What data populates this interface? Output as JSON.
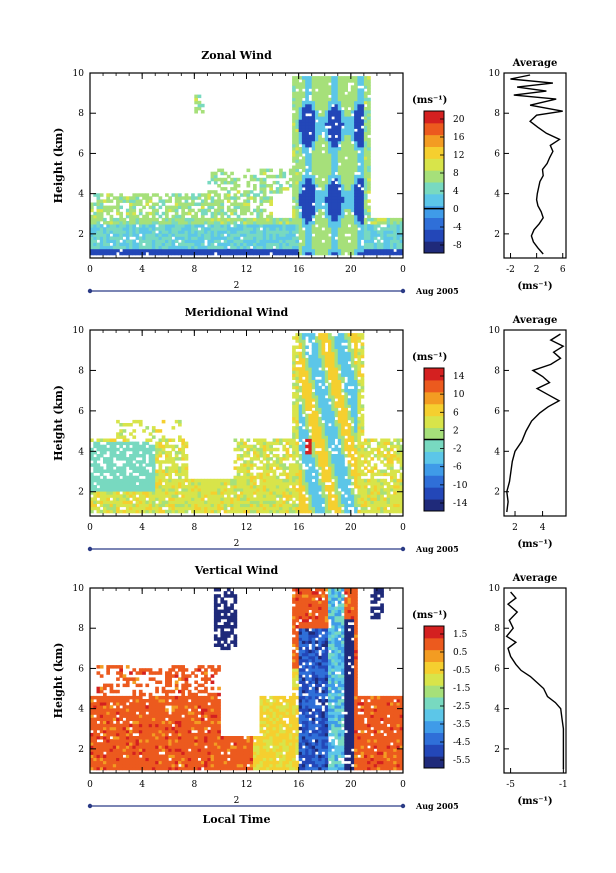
{
  "colors": {
    "colorbar": [
      "#1f2a7a",
      "#2347b8",
      "#2f6fd8",
      "#3f9be8",
      "#5cc6e8",
      "#78d9c0",
      "#a6e07a",
      "#d8e44a",
      "#f5cf2f",
      "#f39c22",
      "#ec5a1e",
      "#d42020"
    ],
    "contour": "#000000",
    "date_axis": "#2b3b86"
  },
  "date_label": "Aug 2005",
  "day_marker": "2",
  "xlabel": "Local Time",
  "unit": "(ms⁻¹)",
  "profile_title": "Average",
  "chart_data": [
    {
      "type": "heatmap",
      "title": "Zonal Wind",
      "ylabel": "Height (km)",
      "xlabel": "Local Time",
      "x_ticks": [
        "0",
        "4",
        "8",
        "12",
        "16",
        "20",
        "0"
      ],
      "xlim": [
        0,
        24
      ],
      "y_ticks": [
        "2",
        "4",
        "6",
        "8",
        "10"
      ],
      "ylim": [
        0.8,
        10
      ],
      "colorbar": {
        "label": "(ms⁻¹)",
        "ticks": [
          "20",
          "16",
          "12",
          "8",
          "4",
          "0",
          "-4",
          "-8"
        ],
        "range": [
          -10,
          22
        ],
        "contour_level": 0
      },
      "profile": {
        "title": "Average",
        "xlabel": "(ms⁻¹)",
        "x_ticks": [
          "-2",
          "2",
          "6"
        ],
        "xlim": [
          -3,
          6.5
        ],
        "y_ticks": [
          "2",
          "4",
          "6",
          "8",
          "10"
        ],
        "ylim": [
          0.8,
          10
        ],
        "points": [
          [
            3.0,
            1.0
          ],
          [
            2.2,
            1.3
          ],
          [
            1.5,
            1.6
          ],
          [
            1.2,
            1.9
          ],
          [
            1.6,
            2.2
          ],
          [
            2.4,
            2.5
          ],
          [
            3.0,
            2.8
          ],
          [
            2.7,
            3.1
          ],
          [
            2.2,
            3.4
          ],
          [
            2.0,
            3.7
          ],
          [
            2.1,
            4.0
          ],
          [
            2.3,
            4.3
          ],
          [
            2.5,
            4.6
          ],
          [
            3.0,
            4.9
          ],
          [
            2.9,
            5.2
          ],
          [
            3.6,
            5.5
          ],
          [
            4.0,
            5.8
          ],
          [
            4.5,
            6.1
          ],
          [
            4.1,
            6.4
          ],
          [
            5.5,
            6.7
          ],
          [
            3.5,
            7.0
          ],
          [
            2.2,
            7.3
          ],
          [
            1.0,
            7.6
          ],
          [
            2.0,
            7.9
          ],
          [
            6.0,
            8.1
          ],
          [
            1.0,
            8.4
          ],
          [
            5.0,
            8.7
          ],
          [
            -1.5,
            8.9
          ],
          [
            3.5,
            9.1
          ],
          [
            -1.0,
            9.3
          ],
          [
            4.5,
            9.5
          ],
          [
            -2.0,
            9.7
          ],
          [
            1.0,
            9.9
          ]
        ]
      }
    },
    {
      "type": "heatmap",
      "title": "Meridional Wind",
      "ylabel": "Height (km)",
      "xlabel": "Local Time",
      "x_ticks": [
        "0",
        "4",
        "8",
        "12",
        "16",
        "20",
        "0"
      ],
      "xlim": [
        0,
        24
      ],
      "y_ticks": [
        "2",
        "4",
        "6",
        "8",
        "10"
      ],
      "ylim": [
        0.8,
        10
      ],
      "colorbar": {
        "label": "(ms⁻¹)",
        "ticks": [
          "14",
          "10",
          "6",
          "2",
          "-2",
          "-6",
          "-10",
          "-14"
        ],
        "range": [
          -16,
          16
        ],
        "contour_level": 0
      },
      "profile": {
        "title": "Average",
        "xlabel": "(ms⁻¹)",
        "x_ticks": [
          "2",
          "4"
        ],
        "xlim": [
          1.2,
          5.7
        ],
        "y_ticks": [
          "2",
          "4",
          "6",
          "8",
          "10"
        ],
        "ylim": [
          0.8,
          10
        ],
        "points": [
          [
            1.4,
            1.0
          ],
          [
            1.5,
            1.5
          ],
          [
            1.4,
            2.0
          ],
          [
            1.6,
            2.5
          ],
          [
            1.7,
            3.0
          ],
          [
            1.8,
            3.5
          ],
          [
            2.0,
            4.0
          ],
          [
            2.5,
            4.5
          ],
          [
            2.8,
            5.0
          ],
          [
            3.2,
            5.5
          ],
          [
            3.8,
            5.9
          ],
          [
            4.4,
            6.2
          ],
          [
            5.2,
            6.5
          ],
          [
            4.4,
            6.8
          ],
          [
            3.6,
            7.1
          ],
          [
            4.5,
            7.4
          ],
          [
            4.0,
            7.7
          ],
          [
            3.3,
            8.0
          ],
          [
            4.6,
            8.3
          ],
          [
            5.3,
            8.6
          ],
          [
            4.8,
            8.9
          ],
          [
            5.5,
            9.2
          ],
          [
            4.6,
            9.5
          ],
          [
            5.3,
            9.8
          ]
        ]
      }
    },
    {
      "type": "heatmap",
      "title": "Vertical Wind",
      "ylabel": "Height (km)",
      "xlabel": "Local Time",
      "x_ticks": [
        "0",
        "4",
        "8",
        "12",
        "16",
        "20",
        "0"
      ],
      "xlim": [
        0,
        24
      ],
      "y_ticks": [
        "2",
        "4",
        "6",
        "8",
        "10"
      ],
      "ylim": [
        0.8,
        10
      ],
      "colorbar": {
        "label": "(ms⁻¹)",
        "ticks": [
          "1.5",
          "0.5",
          "-0.5",
          "-1.5",
          "-2.5",
          "-3.5",
          "-4.5",
          "-5.5"
        ],
        "range": [
          -6,
          2
        ],
        "contour_level": null
      },
      "profile": {
        "title": "Average",
        "xlabel": "(ms⁻¹)",
        "x_ticks": [
          "-5",
          "-1"
        ],
        "xlim": [
          -5.5,
          -0.8
        ],
        "y_ticks": [
          "2",
          "4",
          "6",
          "8",
          "10"
        ],
        "ylim": [
          0.8,
          10
        ],
        "points": [
          [
            -1.0,
            1.0
          ],
          [
            -1.0,
            2.0
          ],
          [
            -1.0,
            3.0
          ],
          [
            -1.1,
            3.5
          ],
          [
            -1.2,
            4.0
          ],
          [
            -1.6,
            4.3
          ],
          [
            -2.2,
            4.6
          ],
          [
            -2.5,
            5.0
          ],
          [
            -3.0,
            5.3
          ],
          [
            -3.5,
            5.6
          ],
          [
            -4.2,
            5.9
          ],
          [
            -4.6,
            6.2
          ],
          [
            -5.0,
            6.6
          ],
          [
            -5.2,
            7.0
          ],
          [
            -4.6,
            7.3
          ],
          [
            -5.3,
            7.6
          ],
          [
            -4.8,
            8.0
          ],
          [
            -5.1,
            8.4
          ],
          [
            -4.5,
            8.8
          ],
          [
            -5.2,
            9.2
          ],
          [
            -4.6,
            9.5
          ],
          [
            -5.0,
            9.8
          ]
        ]
      }
    }
  ]
}
